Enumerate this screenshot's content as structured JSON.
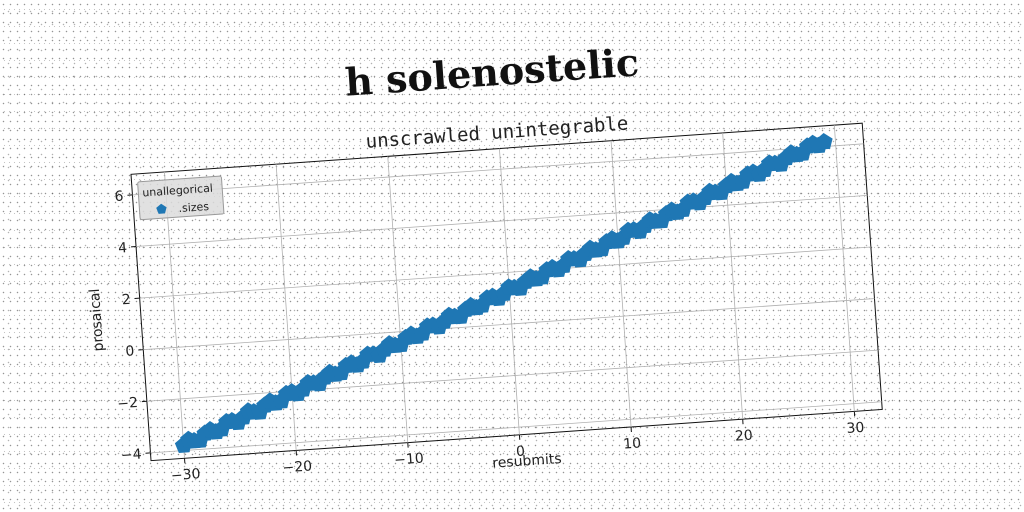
{
  "page": {
    "heading": "h solenostelic"
  },
  "chart_data": {
    "type": "scatter",
    "title": "unscrawled unintegrable",
    "xlabel": "resubmits",
    "ylabel": "prosaical",
    "xlim": [
      -33,
      32.5
    ],
    "ylim": [
      -4.3,
      6.8
    ],
    "xticks": [
      -30,
      -20,
      -10,
      0,
      10,
      20,
      30
    ],
    "yticks": [
      -4,
      -2,
      0,
      2,
      4,
      6
    ],
    "xtick_labels": [
      "−30",
      "−20",
      "−10",
      "0",
      "10",
      "20",
      "30"
    ],
    "ytick_labels": [
      "−4",
      "−2",
      "0",
      "2",
      "4",
      "6"
    ],
    "grid": true,
    "rotation_deg": -4,
    "legend": {
      "title": "unallegorical",
      "location": "upper-left",
      "entries": [
        {
          "label": ".sizes",
          "marker": "pentagon"
        }
      ]
    },
    "series": [
      {
        "name": ".sizes",
        "marker": "pentagon",
        "color": "#1f77b4",
        "x_start": -30,
        "x_end": 29,
        "x_step": 0.5,
        "slope": 0.17,
        "intercept": 1.3,
        "jitter": 0.12
      }
    ]
  }
}
